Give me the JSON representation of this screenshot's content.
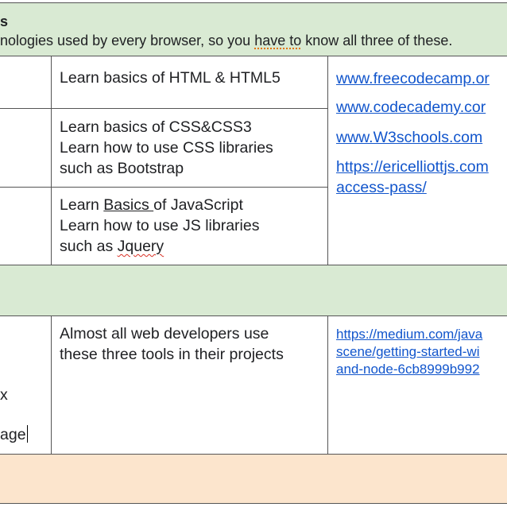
{
  "header": {
    "title_fragment": "s",
    "desc_prefix": "nologies used by every browser, so you ",
    "desc_flagged": "have to",
    "desc_suffix": " know all three of these."
  },
  "rows": [
    {
      "task_lines": [
        "Learn basics of HTML & HTML5"
      ]
    },
    {
      "task_lines": [
        "Learn basics of CSS&CSS3",
        "Learn how to use CSS libraries",
        "such as Bootstrap"
      ]
    },
    {
      "task_line1_underlined": "Basics ",
      "task_line1_prefix": "Learn ",
      "task_line1_suffix": "of JavaScript",
      "task_line2": "Learn how to use JS libraries",
      "task_line3_prefix": "such as ",
      "task_line3_flagged": "Jquery"
    }
  ],
  "resources_1": [
    "www.freecodecamp.or",
    "www.codecademy.cor",
    "www.W3schools.com",
    "https://ericelliottjs.com",
    "access-pass/"
  ],
  "section2": {
    "left_fragment_1": "x",
    "left_fragment_2": "age",
    "task_lines": [
      "Almost all web developers use",
      "these three tools in their projects"
    ],
    "resource_lines": [
      "https://medium.com/java",
      "scene/getting-started-wi",
      "and-node-6cb8999b992"
    ]
  }
}
